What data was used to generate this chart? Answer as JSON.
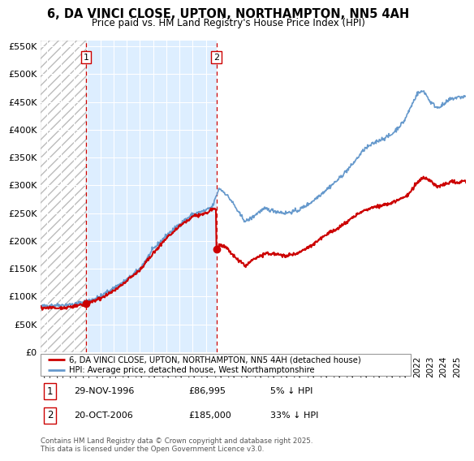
{
  "title": "6, DA VINCI CLOSE, UPTON, NORTHAMPTON, NN5 4AH",
  "subtitle": "Price paid vs. HM Land Registry's House Price Index (HPI)",
  "ylim": [
    0,
    560000
  ],
  "yticks": [
    0,
    50000,
    100000,
    150000,
    200000,
    250000,
    300000,
    350000,
    400000,
    450000,
    500000,
    550000
  ],
  "ytick_labels": [
    "£0",
    "£50K",
    "£100K",
    "£150K",
    "£200K",
    "£250K",
    "£300K",
    "£350K",
    "£400K",
    "£450K",
    "£500K",
    "£550K"
  ],
  "background_color": "#ffffff",
  "plot_bg_color": "#ddeeff",
  "hatch_region_color": "#ffffff",
  "grid_color": "#ffffff",
  "sale1_year": 1996.91,
  "sale1_price": 86995,
  "sale2_year": 2006.8,
  "sale2_price": 185000,
  "legend_line1": "6, DA VINCI CLOSE, UPTON, NORTHAMPTON, NN5 4AH (detached house)",
  "legend_line2": "HPI: Average price, detached house, West Northamptonshire",
  "footnote": "Contains HM Land Registry data © Crown copyright and database right 2025.\nThis data is licensed under the Open Government Licence v3.0.",
  "price_color": "#cc0000",
  "hpi_color": "#6699cc",
  "xmin": 1993.5,
  "xmax": 2025.7
}
